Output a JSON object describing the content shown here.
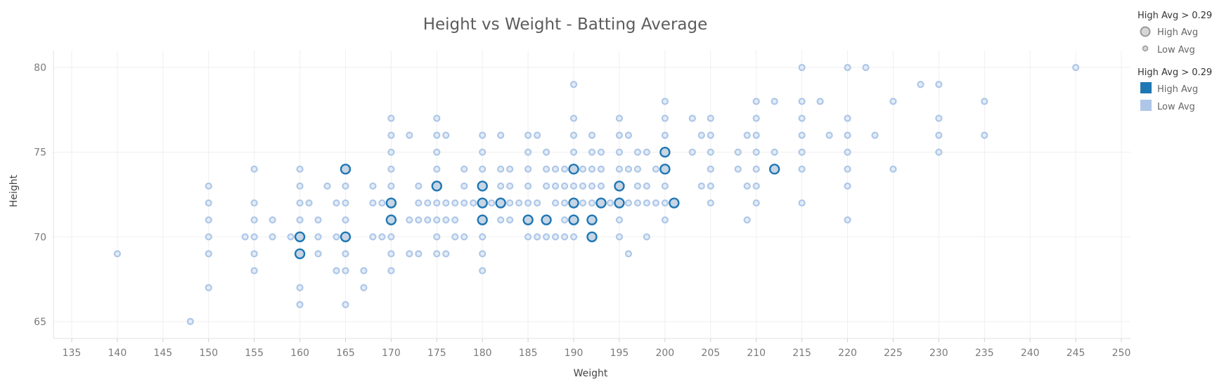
{
  "chart_data": {
    "type": "scatter",
    "title": "Height vs Weight - Batting Average",
    "xlabel": "Weight",
    "ylabel": "Height",
    "xlim": [
      133,
      251
    ],
    "ylim": [
      64,
      81
    ],
    "x_ticks": [
      "135",
      "140",
      "145",
      "150",
      "155",
      "160",
      "165",
      "170",
      "175",
      "180",
      "185",
      "190",
      "195",
      "200",
      "205",
      "210",
      "215",
      "220",
      "225",
      "230",
      "235",
      "240",
      "245",
      "250"
    ],
    "y_ticks": [
      "65",
      "70",
      "75",
      "80"
    ],
    "grid": true,
    "legend_position": "right",
    "legends": [
      {
        "title": "High Avg > 0.29",
        "kind": "size",
        "entries": [
          {
            "label": "High Avg",
            "key": "high"
          },
          {
            "label": "Low Avg",
            "key": "low"
          }
        ]
      },
      {
        "title": "High Avg > 0.29",
        "kind": "color",
        "entries": [
          {
            "label": "High Avg",
            "key": "high",
            "color": "#1f77b4"
          },
          {
            "label": "Low Avg",
            "key": "low",
            "color": "#aec7e8"
          }
        ]
      }
    ],
    "series": [
      {
        "name": "High Avg",
        "color": "#1f77b4",
        "points": [
          [
            160,
            70
          ],
          [
            160,
            69
          ],
          [
            165,
            74
          ],
          [
            165,
            70
          ],
          [
            170,
            72
          ],
          [
            170,
            71
          ],
          [
            175,
            73
          ],
          [
            180,
            73
          ],
          [
            180,
            72
          ],
          [
            180,
            71
          ],
          [
            182,
            72
          ],
          [
            185,
            71
          ],
          [
            187,
            71
          ],
          [
            190,
            74
          ],
          [
            190,
            72
          ],
          [
            190,
            71
          ],
          [
            192,
            71
          ],
          [
            192,
            70
          ],
          [
            193,
            72
          ],
          [
            195,
            73
          ],
          [
            195,
            72
          ],
          [
            200,
            75
          ],
          [
            200,
            74
          ],
          [
            201,
            72
          ],
          [
            212,
            74
          ]
        ]
      },
      {
        "name": "Low Avg",
        "color": "#aec7e8",
        "points": [
          [
            140,
            69
          ],
          [
            148,
            65
          ],
          [
            150,
            73
          ],
          [
            150,
            72
          ],
          [
            150,
            71
          ],
          [
            150,
            70
          ],
          [
            150,
            69
          ],
          [
            150,
            67
          ],
          [
            154,
            70
          ],
          [
            155,
            74
          ],
          [
            155,
            72
          ],
          [
            155,
            71
          ],
          [
            155,
            70
          ],
          [
            155,
            69
          ],
          [
            155,
            68
          ],
          [
            157,
            71
          ],
          [
            157,
            70
          ],
          [
            159,
            70
          ],
          [
            160,
            74
          ],
          [
            160,
            73
          ],
          [
            160,
            72
          ],
          [
            160,
            71
          ],
          [
            160,
            67
          ],
          [
            160,
            66
          ],
          [
            161,
            72
          ],
          [
            162,
            71
          ],
          [
            162,
            70
          ],
          [
            162,
            69
          ],
          [
            163,
            73
          ],
          [
            164,
            72
          ],
          [
            164,
            70
          ],
          [
            164,
            68
          ],
          [
            165,
            73
          ],
          [
            165,
            72
          ],
          [
            165,
            71
          ],
          [
            165,
            69
          ],
          [
            165,
            68
          ],
          [
            165,
            66
          ],
          [
            167,
            68
          ],
          [
            167,
            67
          ],
          [
            168,
            73
          ],
          [
            168,
            72
          ],
          [
            168,
            70
          ],
          [
            169,
            72
          ],
          [
            169,
            70
          ],
          [
            170,
            77
          ],
          [
            170,
            76
          ],
          [
            170,
            75
          ],
          [
            170,
            74
          ],
          [
            170,
            73
          ],
          [
            170,
            70
          ],
          [
            170,
            69
          ],
          [
            170,
            68
          ],
          [
            172,
            76
          ],
          [
            172,
            71
          ],
          [
            172,
            69
          ],
          [
            173,
            73
          ],
          [
            173,
            72
          ],
          [
            173,
            71
          ],
          [
            173,
            69
          ],
          [
            174,
            72
          ],
          [
            174,
            71
          ],
          [
            175,
            77
          ],
          [
            175,
            76
          ],
          [
            175,
            75
          ],
          [
            175,
            74
          ],
          [
            175,
            72
          ],
          [
            175,
            71
          ],
          [
            175,
            70
          ],
          [
            175,
            69
          ],
          [
            176,
            76
          ],
          [
            176,
            72
          ],
          [
            176,
            71
          ],
          [
            176,
            69
          ],
          [
            177,
            72
          ],
          [
            177,
            71
          ],
          [
            177,
            70
          ],
          [
            178,
            74
          ],
          [
            178,
            73
          ],
          [
            178,
            72
          ],
          [
            178,
            70
          ],
          [
            179,
            72
          ],
          [
            180,
            76
          ],
          [
            180,
            75
          ],
          [
            180,
            74
          ],
          [
            180,
            70
          ],
          [
            180,
            69
          ],
          [
            180,
            68
          ],
          [
            181,
            72
          ],
          [
            182,
            76
          ],
          [
            182,
            74
          ],
          [
            182,
            73
          ],
          [
            182,
            71
          ],
          [
            183,
            74
          ],
          [
            183,
            73
          ],
          [
            183,
            72
          ],
          [
            183,
            71
          ],
          [
            184,
            72
          ],
          [
            185,
            76
          ],
          [
            185,
            75
          ],
          [
            185,
            74
          ],
          [
            185,
            73
          ],
          [
            185,
            72
          ],
          [
            185,
            70
          ],
          [
            186,
            76
          ],
          [
            186,
            72
          ],
          [
            186,
            70
          ],
          [
            187,
            75
          ],
          [
            187,
            74
          ],
          [
            187,
            73
          ],
          [
            187,
            70
          ],
          [
            188,
            74
          ],
          [
            188,
            73
          ],
          [
            188,
            72
          ],
          [
            188,
            70
          ],
          [
            189,
            74
          ],
          [
            189,
            73
          ],
          [
            189,
            72
          ],
          [
            189,
            71
          ],
          [
            189,
            70
          ],
          [
            190,
            79
          ],
          [
            190,
            77
          ],
          [
            190,
            76
          ],
          [
            190,
            75
          ],
          [
            190,
            73
          ],
          [
            190,
            70
          ],
          [
            191,
            74
          ],
          [
            191,
            73
          ],
          [
            191,
            72
          ],
          [
            192,
            76
          ],
          [
            192,
            75
          ],
          [
            192,
            74
          ],
          [
            192,
            73
          ],
          [
            192,
            72
          ],
          [
            193,
            75
          ],
          [
            193,
            74
          ],
          [
            193,
            73
          ],
          [
            194,
            72
          ],
          [
            195,
            77
          ],
          [
            195,
            76
          ],
          [
            195,
            75
          ],
          [
            195,
            74
          ],
          [
            195,
            71
          ],
          [
            195,
            70
          ],
          [
            196,
            76
          ],
          [
            196,
            74
          ],
          [
            196,
            72
          ],
          [
            196,
            69
          ],
          [
            197,
            75
          ],
          [
            197,
            74
          ],
          [
            197,
            73
          ],
          [
            197,
            72
          ],
          [
            198,
            75
          ],
          [
            198,
            73
          ],
          [
            198,
            72
          ],
          [
            198,
            70
          ],
          [
            199,
            74
          ],
          [
            199,
            72
          ],
          [
            200,
            78
          ],
          [
            200,
            77
          ],
          [
            200,
            76
          ],
          [
            200,
            73
          ],
          [
            200,
            72
          ],
          [
            200,
            71
          ],
          [
            203,
            77
          ],
          [
            203,
            75
          ],
          [
            204,
            76
          ],
          [
            204,
            73
          ],
          [
            205,
            77
          ],
          [
            205,
            76
          ],
          [
            205,
            75
          ],
          [
            205,
            74
          ],
          [
            205,
            73
          ],
          [
            205,
            72
          ],
          [
            208,
            75
          ],
          [
            208,
            74
          ],
          [
            209,
            76
          ],
          [
            209,
            73
          ],
          [
            209,
            71
          ],
          [
            210,
            78
          ],
          [
            210,
            77
          ],
          [
            210,
            76
          ],
          [
            210,
            75
          ],
          [
            210,
            74
          ],
          [
            210,
            73
          ],
          [
            210,
            72
          ],
          [
            212,
            78
          ],
          [
            212,
            75
          ],
          [
            215,
            80
          ],
          [
            215,
            78
          ],
          [
            215,
            77
          ],
          [
            215,
            76
          ],
          [
            215,
            75
          ],
          [
            215,
            74
          ],
          [
            215,
            72
          ],
          [
            217,
            78
          ],
          [
            218,
            76
          ],
          [
            220,
            80
          ],
          [
            220,
            77
          ],
          [
            220,
            76
          ],
          [
            220,
            75
          ],
          [
            220,
            74
          ],
          [
            220,
            73
          ],
          [
            220,
            71
          ],
          [
            222,
            80
          ],
          [
            223,
            76
          ],
          [
            225,
            78
          ],
          [
            225,
            74
          ],
          [
            228,
            79
          ],
          [
            230,
            79
          ],
          [
            230,
            77
          ],
          [
            230,
            76
          ],
          [
            230,
            75
          ],
          [
            235,
            78
          ],
          [
            235,
            76
          ],
          [
            245,
            80
          ]
        ]
      }
    ]
  }
}
